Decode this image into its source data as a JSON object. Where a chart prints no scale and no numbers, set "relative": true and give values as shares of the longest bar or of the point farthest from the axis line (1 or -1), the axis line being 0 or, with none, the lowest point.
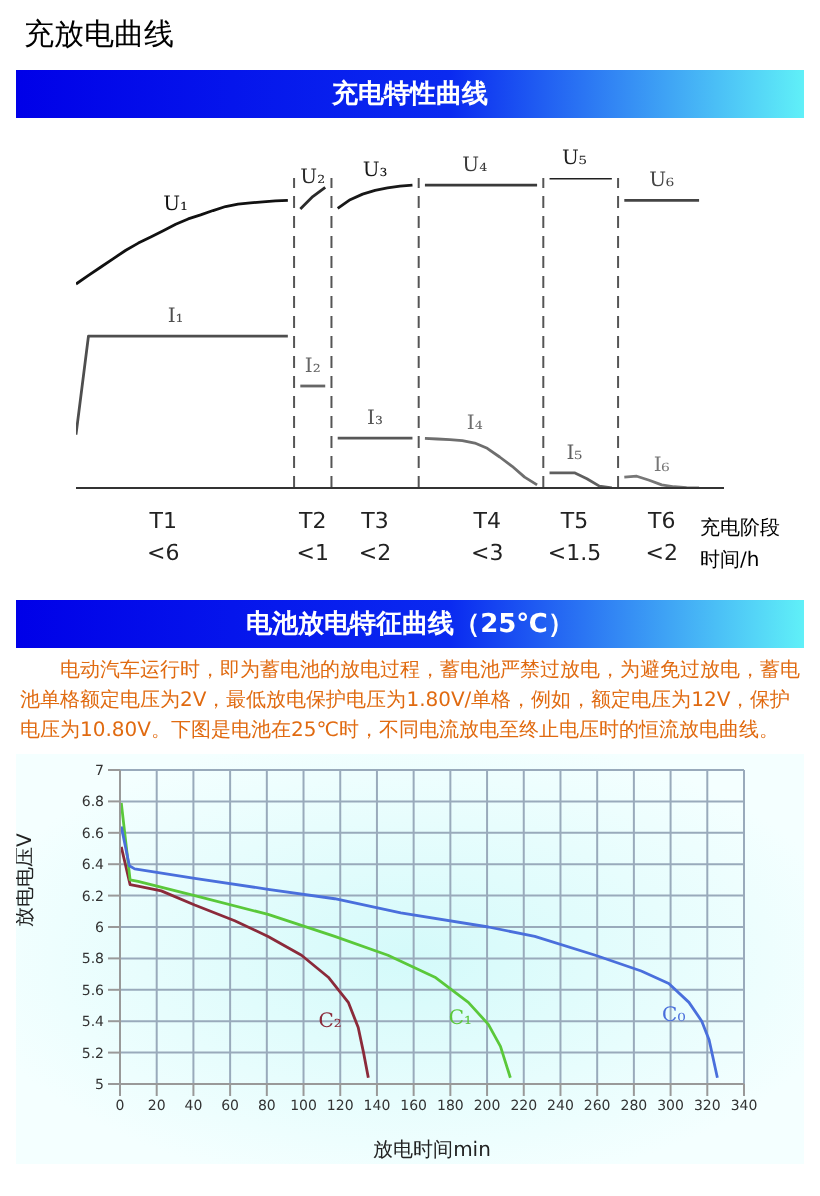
{
  "chart_data": [
    {
      "type": "line",
      "title": "充放电曲线",
      "subtitle": "充电特性曲线",
      "relative": true,
      "xlabel": "充电阶段",
      "annotations": [
        "时间/h"
      ],
      "categories": [
        null,
        null,
        null,
        null,
        null,
        null,
        null,
        "T1\n<6",
        null,
        null,
        null,
        null,
        null,
        null,
        null,
        null,
        null,
        null,
        null,
        "T2\n<1",
        null,
        null,
        null,
        null,
        "T3\n<2",
        null,
        null,
        null,
        null,
        null,
        null,
        null,
        null,
        "T4\n<3",
        null,
        null,
        null,
        null,
        null,
        null,
        "T5\n<1.5",
        null,
        null,
        null,
        null,
        null,
        null,
        "T6\n<2",
        null,
        null,
        null,
        null,
        null
      ],
      "grid": false,
      "legend": false,
      "marker": "none",
      "line_style": "solid",
      "series": [
        {
          "name": "U₁",
          "color": "#111111",
          "values": [
            0.658,
            0.686,
            0.713,
            0.74,
            0.767,
            0.79,
            0.81,
            0.83,
            0.851,
            0.868,
            0.881,
            0.895,
            0.908,
            0.916,
            0.92,
            0.923,
            0.926,
            0.928,
            null,
            null,
            null,
            null,
            null,
            null,
            null,
            null,
            null,
            null,
            null,
            null,
            null,
            null,
            null,
            null,
            null,
            null,
            null,
            null,
            null,
            null,
            null,
            null,
            null,
            null,
            null,
            null,
            null,
            null,
            null,
            null,
            null,
            null,
            null
          ]
        },
        {
          "name": "U₂",
          "color": "#2a2a2a",
          "values": [
            null,
            null,
            null,
            null,
            null,
            null,
            null,
            null,
            null,
            null,
            null,
            null,
            null,
            null,
            null,
            null,
            null,
            null,
            0.9,
            0.94,
            0.97,
            null,
            null,
            null,
            null,
            null,
            null,
            null,
            null,
            null,
            null,
            null,
            null,
            null,
            null,
            null,
            null,
            null,
            null,
            null,
            null,
            null,
            null,
            null,
            null,
            null,
            null,
            null,
            null,
            null,
            null,
            null,
            null
          ]
        },
        {
          "name": "U₃",
          "color": "#181818",
          "values": [
            null,
            null,
            null,
            null,
            null,
            null,
            null,
            null,
            null,
            null,
            null,
            null,
            null,
            null,
            null,
            null,
            null,
            null,
            null,
            null,
            null,
            0.902,
            0.93,
            0.948,
            0.96,
            0.968,
            0.974,
            0.977,
            null,
            null,
            null,
            null,
            null,
            null,
            null,
            null,
            null,
            null,
            null,
            null,
            null,
            null,
            null,
            null,
            null,
            null,
            null,
            null,
            null,
            null,
            null,
            null,
            null
          ]
        },
        {
          "name": "U₄",
          "color": "#3a3a3a",
          "values": [
            null,
            null,
            null,
            null,
            null,
            null,
            null,
            null,
            null,
            null,
            null,
            null,
            null,
            null,
            null,
            null,
            null,
            null,
            null,
            null,
            null,
            null,
            null,
            null,
            null,
            null,
            null,
            null,
            0.977,
            0.977,
            0.977,
            0.977,
            0.977,
            0.977,
            0.977,
            0.977,
            0.977,
            0.977,
            null,
            null,
            null,
            null,
            null,
            null,
            null,
            null,
            null,
            null,
            null,
            null,
            null,
            null,
            null
          ]
        },
        {
          "name": "U₅",
          "color": "#202020",
          "values": [
            null,
            null,
            null,
            null,
            null,
            null,
            null,
            null,
            null,
            null,
            null,
            null,
            null,
            null,
            null,
            null,
            null,
            null,
            null,
            null,
            null,
            null,
            null,
            null,
            null,
            null,
            null,
            null,
            null,
            null,
            null,
            null,
            null,
            null,
            null,
            null,
            null,
            null,
            1,
            1,
            1,
            1,
            1,
            1,
            null,
            null,
            null,
            null,
            null,
            null,
            null,
            null,
            null
          ]
        },
        {
          "name": "U₆",
          "color": "#444444",
          "values": [
            null,
            null,
            null,
            null,
            null,
            null,
            null,
            null,
            null,
            null,
            null,
            null,
            null,
            null,
            null,
            null,
            null,
            null,
            null,
            null,
            null,
            null,
            null,
            null,
            null,
            null,
            null,
            null,
            null,
            null,
            null,
            null,
            null,
            null,
            null,
            null,
            null,
            null,
            null,
            null,
            null,
            null,
            null,
            null,
            0.928,
            0.928,
            0.928,
            0.928,
            0.928,
            0.928,
            0.928,
            null,
            null
          ]
        },
        {
          "name": "I₁",
          "color": "#4e4e4e",
          "values": [
            0.172,
            0.49,
            0.49,
            0.49,
            0.49,
            0.49,
            0.49,
            0.49,
            0.49,
            0.49,
            0.49,
            0.49,
            0.49,
            0.49,
            0.49,
            0.49,
            0.49,
            0.49,
            null,
            null,
            null,
            null,
            null,
            null,
            null,
            null,
            null,
            null,
            null,
            null,
            null,
            null,
            null,
            null,
            null,
            null,
            null,
            null,
            null,
            null,
            null,
            null,
            null,
            null,
            null,
            null,
            null,
            null,
            null,
            null,
            null,
            null,
            null
          ]
        },
        {
          "name": "I₂",
          "color": "#666666",
          "values": [
            null,
            null,
            null,
            null,
            null,
            null,
            null,
            null,
            null,
            null,
            null,
            null,
            null,
            null,
            null,
            null,
            null,
            null,
            0.329,
            0.329,
            0.329,
            null,
            null,
            null,
            null,
            null,
            null,
            null,
            null,
            null,
            null,
            null,
            null,
            null,
            null,
            null,
            null,
            null,
            null,
            null,
            null,
            null,
            null,
            null,
            null,
            null,
            null,
            null,
            null,
            null,
            null,
            null,
            null
          ]
        },
        {
          "name": "I₃",
          "color": "#575757",
          "values": [
            null,
            null,
            null,
            null,
            null,
            null,
            null,
            null,
            null,
            null,
            null,
            null,
            null,
            null,
            null,
            null,
            null,
            null,
            null,
            null,
            null,
            0.161,
            0.161,
            0.161,
            0.161,
            0.161,
            0.161,
            0.161,
            null,
            null,
            null,
            null,
            null,
            null,
            null,
            null,
            null,
            null,
            null,
            null,
            null,
            null,
            null,
            null,
            null,
            null,
            null,
            null,
            null,
            null,
            null,
            null,
            null
          ]
        },
        {
          "name": "I₄",
          "color": "#6e6e6e",
          "values": [
            null,
            null,
            null,
            null,
            null,
            null,
            null,
            null,
            null,
            null,
            null,
            null,
            null,
            null,
            null,
            null,
            null,
            null,
            null,
            null,
            null,
            null,
            null,
            null,
            null,
            null,
            null,
            null,
            0.16,
            0.158,
            0.156,
            0.153,
            0.145,
            0.128,
            0.1,
            0.07,
            0.035,
            0.01,
            null,
            null,
            null,
            null,
            null,
            null,
            null,
            null,
            null,
            null,
            null,
            null,
            null,
            null,
            null
          ]
        },
        {
          "name": "I₅",
          "color": "#5f5f5f",
          "values": [
            null,
            null,
            null,
            null,
            null,
            null,
            null,
            null,
            null,
            null,
            null,
            null,
            null,
            null,
            null,
            null,
            null,
            null,
            null,
            null,
            null,
            null,
            null,
            null,
            null,
            null,
            null,
            null,
            null,
            null,
            null,
            null,
            null,
            null,
            null,
            null,
            null,
            null,
            0.049,
            0.049,
            0.049,
            0.03,
            0.006,
            0,
            null,
            null,
            null,
            null,
            null,
            null,
            null,
            null,
            null
          ]
        },
        {
          "name": "I₆",
          "color": "#777777",
          "values": [
            null,
            null,
            null,
            null,
            null,
            null,
            null,
            null,
            null,
            null,
            null,
            null,
            null,
            null,
            null,
            null,
            null,
            null,
            null,
            null,
            null,
            null,
            null,
            null,
            null,
            null,
            null,
            null,
            null,
            null,
            null,
            null,
            null,
            null,
            null,
            null,
            null,
            null,
            null,
            null,
            null,
            null,
            null,
            null,
            0.035,
            0.038,
            0.025,
            0.01,
            0.004,
            0.001,
            0,
            null,
            null
          ]
        }
      ]
    },
    {
      "type": "line",
      "title": "电池放电特征曲线（25℃）",
      "subtitle": "电动汽车运行时，即为蓄电池的放电过程，蓄电池严禁过放电，为避免过放电，蓄电池单格额定电压为2V，最低放电保护电压为1.80V/单格，例如，额定电压为12V，保护电压为10.80V。下图是电池在25℃时，不同电流放电至终止电压时的恒流放电曲线。",
      "xlabel": "放电时间min",
      "ylabel": "放电电压V",
      "xlim": [
        0,
        340
      ],
      "xticks": [
        0,
        20,
        40,
        60,
        80,
        100,
        120,
        140,
        160,
        180,
        200,
        220,
        240,
        260,
        280,
        300,
        320,
        340
      ],
      "ylim": [
        5,
        7
      ],
      "yticks": [
        5,
        5.2,
        5.4,
        5.6,
        5.8,
        6,
        6.2,
        6.4,
        6.6,
        6.8,
        7
      ],
      "grid": true,
      "legend": false,
      "marker": "none",
      "line_style": "solid",
      "series": [
        {
          "name": "C₂",
          "color": "#8b2a3a",
          "x": [
            0.7,
            5.5,
            9.8,
            22.5,
            40.7,
            62.5,
            80.7,
            98.9,
            113.5,
            124.4,
            129.8,
            132.7,
            135.3
          ],
          "values": [
            6.51,
            6.27,
            6.26,
            6.23,
            6.14,
            6.04,
            5.94,
            5.82,
            5.68,
            5.52,
            5.36,
            5.2,
            5.04
          ]
        },
        {
          "name": "C₁",
          "color": "#5ac83a",
          "x": [
            0.7,
            5.5,
            9.8,
            40.7,
            80.7,
            117,
            146,
            171.6,
            189.8,
            200.7,
            207.3,
            212.7
          ],
          "values": [
            6.79,
            6.3,
            6.29,
            6.2,
            6.08,
            5.94,
            5.82,
            5.68,
            5.52,
            5.38,
            5.24,
            5.04
          ]
        },
        {
          "name": "C₀",
          "color": "#4a6fdc",
          "x": [
            0.7,
            5.1,
            8,
            40.7,
            80.7,
            117,
            153,
            200.7,
            226,
            259,
            284,
            299,
            310,
            317,
            321,
            325.5
          ],
          "values": [
            6.64,
            6.39,
            6.37,
            6.31,
            6.24,
            6.18,
            6.09,
            6.0,
            5.94,
            5.82,
            5.72,
            5.64,
            5.52,
            5.4,
            5.28,
            5.04
          ]
        }
      ]
    }
  ]
}
